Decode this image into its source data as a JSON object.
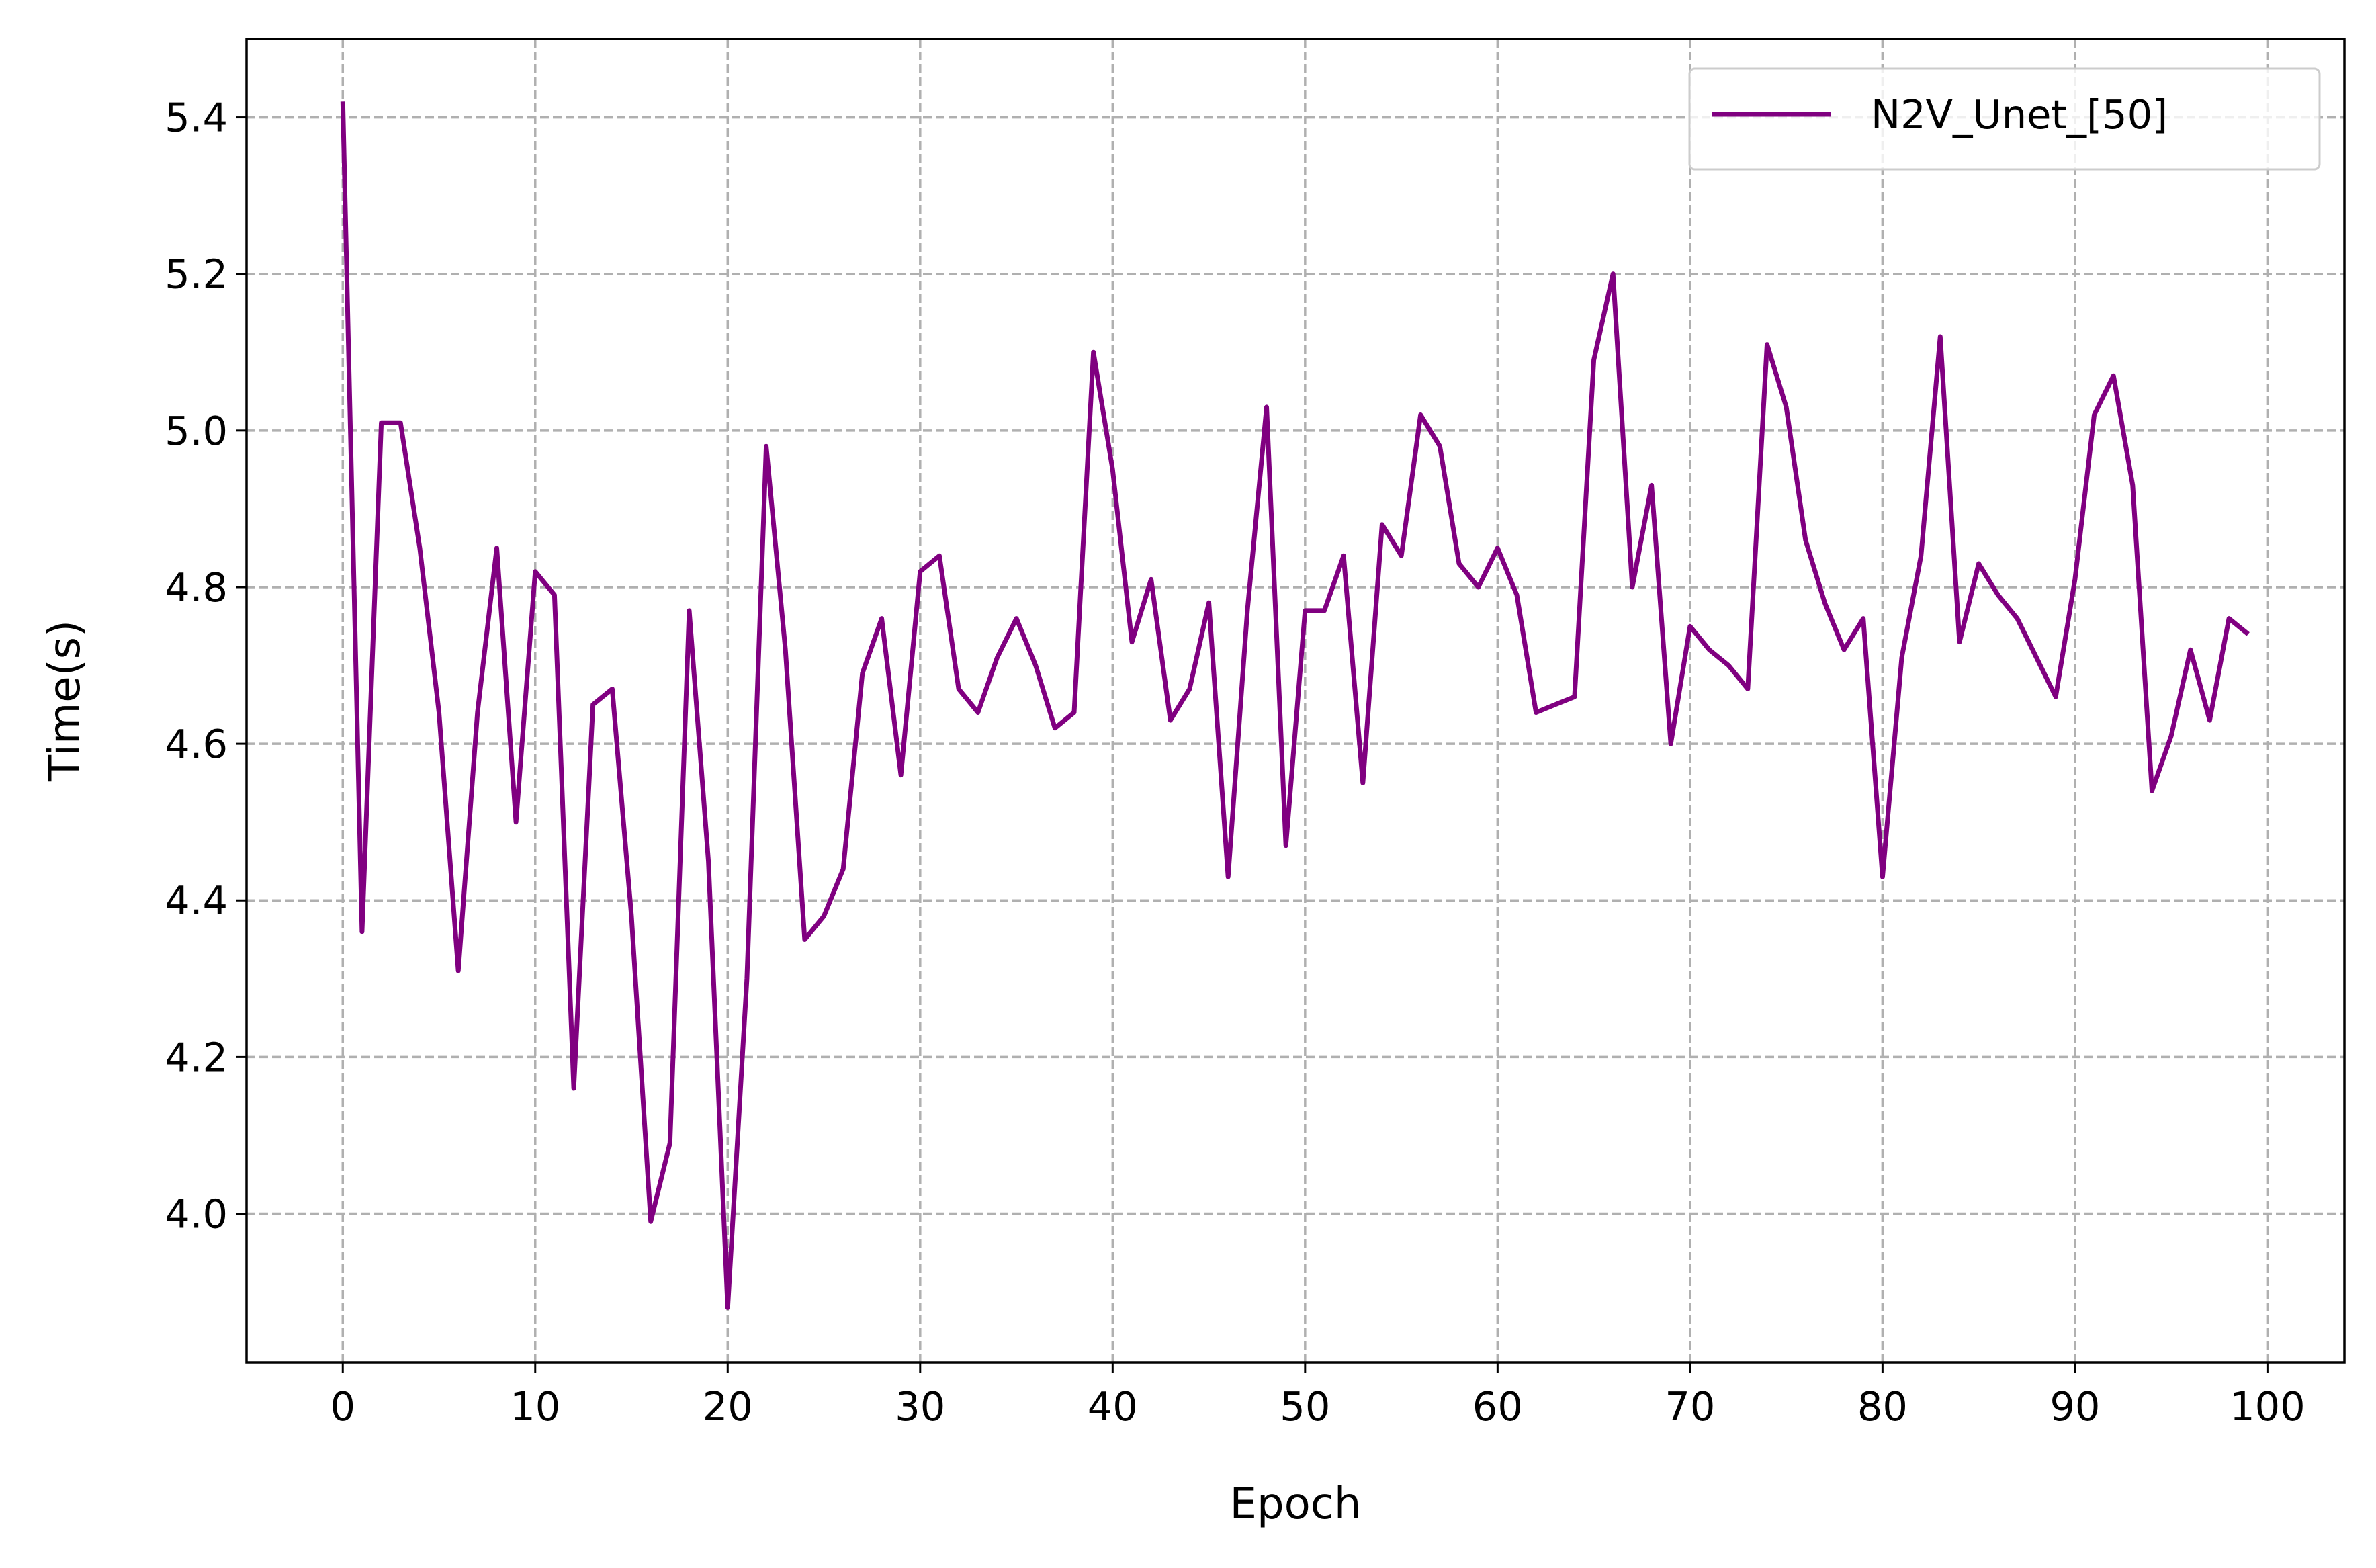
{
  "chart_data": {
    "type": "line",
    "xlabel": "Epoch",
    "ylabel": "Time(s)",
    "xlim": [
      -5,
      104
    ],
    "ylim": [
      3.81,
      5.5
    ],
    "x_ticks": [
      0,
      10,
      20,
      30,
      40,
      50,
      60,
      70,
      80,
      90,
      100
    ],
    "x_tick_labels": [
      "0",
      "10",
      "20",
      "30",
      "40",
      "50",
      "60",
      "70",
      "80",
      "90",
      "100"
    ],
    "y_ticks": [
      4.0,
      4.2,
      4.4,
      4.6,
      4.8,
      5.0,
      5.2,
      5.4
    ],
    "y_tick_labels": [
      "4.0",
      "4.2",
      "4.4",
      "4.6",
      "4.8",
      "5.0",
      "5.2",
      "5.4"
    ],
    "grid": true,
    "legend_position": "top-right",
    "series": [
      {
        "name": "N2V_Unet_[50]",
        "color": "#800080",
        "x": [
          0,
          1,
          2,
          3,
          4,
          5,
          6,
          7,
          8,
          9,
          10,
          11,
          12,
          13,
          14,
          15,
          16,
          17,
          18,
          19,
          20,
          21,
          22,
          23,
          24,
          25,
          26,
          27,
          28,
          29,
          30,
          31,
          32,
          33,
          34,
          35,
          36,
          37,
          38,
          39,
          40,
          41,
          42,
          43,
          44,
          45,
          46,
          47,
          48,
          49,
          50,
          51,
          52,
          53,
          54,
          55,
          56,
          57,
          58,
          59,
          60,
          61,
          62,
          63,
          64,
          65,
          66,
          67,
          68,
          69,
          70,
          71,
          72,
          73,
          74,
          75,
          76,
          77,
          78,
          79,
          80,
          81,
          82,
          83,
          84,
          85,
          86,
          87,
          88,
          89,
          90,
          91,
          92,
          93,
          94,
          95,
          96,
          97,
          98,
          99
        ],
        "values": [
          5.42,
          4.36,
          5.01,
          5.01,
          4.85,
          4.64,
          4.31,
          4.64,
          4.85,
          4.5,
          4.82,
          4.79,
          4.16,
          4.65,
          4.67,
          4.38,
          3.99,
          4.09,
          4.77,
          4.45,
          3.88,
          4.3,
          4.98,
          4.72,
          4.35,
          4.38,
          4.44,
          4.69,
          4.76,
          4.56,
          4.82,
          4.84,
          4.67,
          4.64,
          4.71,
          4.76,
          4.7,
          4.62,
          4.64,
          5.1,
          4.95,
          4.73,
          4.81,
          4.63,
          4.67,
          4.78,
          4.43,
          4.77,
          5.03,
          4.47,
          4.77,
          4.77,
          4.84,
          4.55,
          4.88,
          4.84,
          5.02,
          4.98,
          4.83,
          4.8,
          4.85,
          4.79,
          4.64,
          4.65,
          4.66,
          5.09,
          5.2,
          4.8,
          4.93,
          4.6,
          4.75,
          4.72,
          4.7,
          4.67,
          5.11,
          5.03,
          4.86,
          4.78,
          4.72,
          4.76,
          4.43,
          4.71,
          4.84,
          5.12,
          4.73,
          4.83,
          4.79,
          4.76,
          4.71,
          4.66,
          4.81,
          5.02,
          5.07,
          4.93,
          4.54,
          4.61,
          4.72,
          4.63,
          4.76,
          4.74
        ]
      }
    ]
  }
}
